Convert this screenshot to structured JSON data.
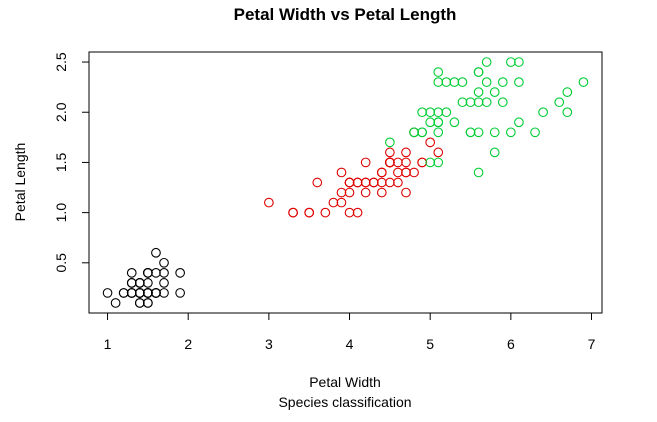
{
  "chart_data": {
    "type": "scatter",
    "title": "Petal Width vs Petal Length",
    "xlabel": "Petal Width",
    "ylabel": "Petal Length",
    "subtitle": "Species classification",
    "xlim": [
      0.77,
      7.13
    ],
    "ylim": [
      0.0,
      2.6
    ],
    "xticks": [
      "1",
      "2",
      "3",
      "4",
      "5",
      "6",
      "7"
    ],
    "yticks": [
      "0.5",
      "1.0",
      "1.5",
      "2.0",
      "2.5"
    ],
    "legend": "none",
    "grid": false,
    "series": [
      {
        "color": "#000000",
        "points": [
          [
            1.4,
            0.2
          ],
          [
            1.4,
            0.2
          ],
          [
            1.3,
            0.2
          ],
          [
            1.5,
            0.2
          ],
          [
            1.4,
            0.2
          ],
          [
            1.7,
            0.4
          ],
          [
            1.4,
            0.3
          ],
          [
            1.5,
            0.2
          ],
          [
            1.4,
            0.2
          ],
          [
            1.5,
            0.1
          ],
          [
            1.5,
            0.2
          ],
          [
            1.6,
            0.2
          ],
          [
            1.4,
            0.1
          ],
          [
            1.1,
            0.1
          ],
          [
            1.2,
            0.2
          ],
          [
            1.5,
            0.4
          ],
          [
            1.3,
            0.4
          ],
          [
            1.4,
            0.3
          ],
          [
            1.7,
            0.3
          ],
          [
            1.5,
            0.3
          ],
          [
            1.7,
            0.2
          ],
          [
            1.5,
            0.4
          ],
          [
            1.0,
            0.2
          ],
          [
            1.7,
            0.5
          ],
          [
            1.9,
            0.2
          ],
          [
            1.6,
            0.2
          ],
          [
            1.6,
            0.4
          ],
          [
            1.5,
            0.2
          ],
          [
            1.4,
            0.2
          ],
          [
            1.6,
            0.2
          ],
          [
            1.6,
            0.2
          ],
          [
            1.5,
            0.4
          ],
          [
            1.5,
            0.1
          ],
          [
            1.4,
            0.2
          ],
          [
            1.5,
            0.2
          ],
          [
            1.2,
            0.2
          ],
          [
            1.3,
            0.2
          ],
          [
            1.4,
            0.1
          ],
          [
            1.3,
            0.2
          ],
          [
            1.5,
            0.2
          ],
          [
            1.3,
            0.3
          ],
          [
            1.3,
            0.3
          ],
          [
            1.3,
            0.2
          ],
          [
            1.6,
            0.6
          ],
          [
            1.9,
            0.4
          ],
          [
            1.4,
            0.3
          ],
          [
            1.6,
            0.2
          ],
          [
            1.4,
            0.2
          ],
          [
            1.5,
            0.2
          ],
          [
            1.4,
            0.2
          ]
        ]
      },
      {
        "color": "#df0000",
        "points": [
          [
            4.7,
            1.4
          ],
          [
            4.5,
            1.5
          ],
          [
            4.9,
            1.5
          ],
          [
            4.0,
            1.3
          ],
          [
            4.6,
            1.5
          ],
          [
            4.5,
            1.3
          ],
          [
            4.7,
            1.6
          ],
          [
            3.3,
            1.0
          ],
          [
            4.6,
            1.3
          ],
          [
            3.9,
            1.4
          ],
          [
            3.5,
            1.0
          ],
          [
            4.2,
            1.5
          ],
          [
            4.0,
            1.0
          ],
          [
            4.7,
            1.4
          ],
          [
            3.6,
            1.3
          ],
          [
            4.4,
            1.4
          ],
          [
            4.5,
            1.5
          ],
          [
            4.1,
            1.0
          ],
          [
            4.5,
            1.5
          ],
          [
            3.9,
            1.1
          ],
          [
            4.8,
            1.8
          ],
          [
            4.0,
            1.3
          ],
          [
            4.9,
            1.5
          ],
          [
            4.7,
            1.2
          ],
          [
            4.3,
            1.3
          ],
          [
            4.4,
            1.4
          ],
          [
            4.8,
            1.4
          ],
          [
            5.0,
            1.7
          ],
          [
            4.5,
            1.5
          ],
          [
            3.5,
            1.0
          ],
          [
            3.8,
            1.1
          ],
          [
            3.7,
            1.0
          ],
          [
            3.9,
            1.2
          ],
          [
            5.1,
            1.6
          ],
          [
            4.5,
            1.5
          ],
          [
            4.5,
            1.6
          ],
          [
            4.7,
            1.5
          ],
          [
            4.4,
            1.3
          ],
          [
            4.1,
            1.3
          ],
          [
            4.0,
            1.3
          ],
          [
            4.4,
            1.2
          ],
          [
            4.6,
            1.4
          ],
          [
            4.0,
            1.2
          ],
          [
            3.3,
            1.0
          ],
          [
            4.2,
            1.3
          ],
          [
            4.2,
            1.2
          ],
          [
            4.2,
            1.3
          ],
          [
            4.3,
            1.3
          ],
          [
            3.0,
            1.1
          ],
          [
            4.1,
            1.3
          ]
        ]
      },
      {
        "color": "#00cd34",
        "points": [
          [
            6.0,
            2.5
          ],
          [
            5.1,
            1.9
          ],
          [
            5.9,
            2.1
          ],
          [
            5.6,
            1.8
          ],
          [
            5.8,
            2.2
          ],
          [
            6.6,
            2.1
          ],
          [
            4.5,
            1.7
          ],
          [
            6.3,
            1.8
          ],
          [
            5.8,
            1.8
          ],
          [
            6.1,
            2.5
          ],
          [
            5.1,
            2.0
          ],
          [
            5.3,
            1.9
          ],
          [
            5.5,
            2.1
          ],
          [
            5.0,
            2.0
          ],
          [
            5.1,
            2.4
          ],
          [
            5.3,
            2.3
          ],
          [
            5.5,
            1.8
          ],
          [
            6.7,
            2.2
          ],
          [
            6.9,
            2.3
          ],
          [
            5.0,
            1.5
          ],
          [
            5.7,
            2.3
          ],
          [
            4.9,
            2.0
          ],
          [
            6.7,
            2.0
          ],
          [
            4.9,
            1.8
          ],
          [
            5.7,
            2.1
          ],
          [
            6.0,
            1.8
          ],
          [
            4.8,
            1.8
          ],
          [
            4.9,
            1.8
          ],
          [
            5.6,
            2.1
          ],
          [
            5.8,
            1.6
          ],
          [
            6.1,
            1.9
          ],
          [
            6.4,
            2.0
          ],
          [
            5.6,
            2.2
          ],
          [
            5.1,
            1.5
          ],
          [
            5.6,
            1.4
          ],
          [
            6.1,
            2.3
          ],
          [
            5.6,
            2.4
          ],
          [
            5.5,
            1.8
          ],
          [
            4.8,
            1.8
          ],
          [
            5.4,
            2.1
          ],
          [
            5.6,
            2.4
          ],
          [
            5.1,
            2.3
          ],
          [
            5.1,
            1.9
          ],
          [
            5.9,
            2.3
          ],
          [
            5.7,
            2.5
          ],
          [
            5.2,
            2.3
          ],
          [
            5.0,
            1.9
          ],
          [
            5.2,
            2.0
          ],
          [
            5.4,
            2.3
          ],
          [
            5.1,
            1.8
          ]
        ]
      }
    ]
  }
}
